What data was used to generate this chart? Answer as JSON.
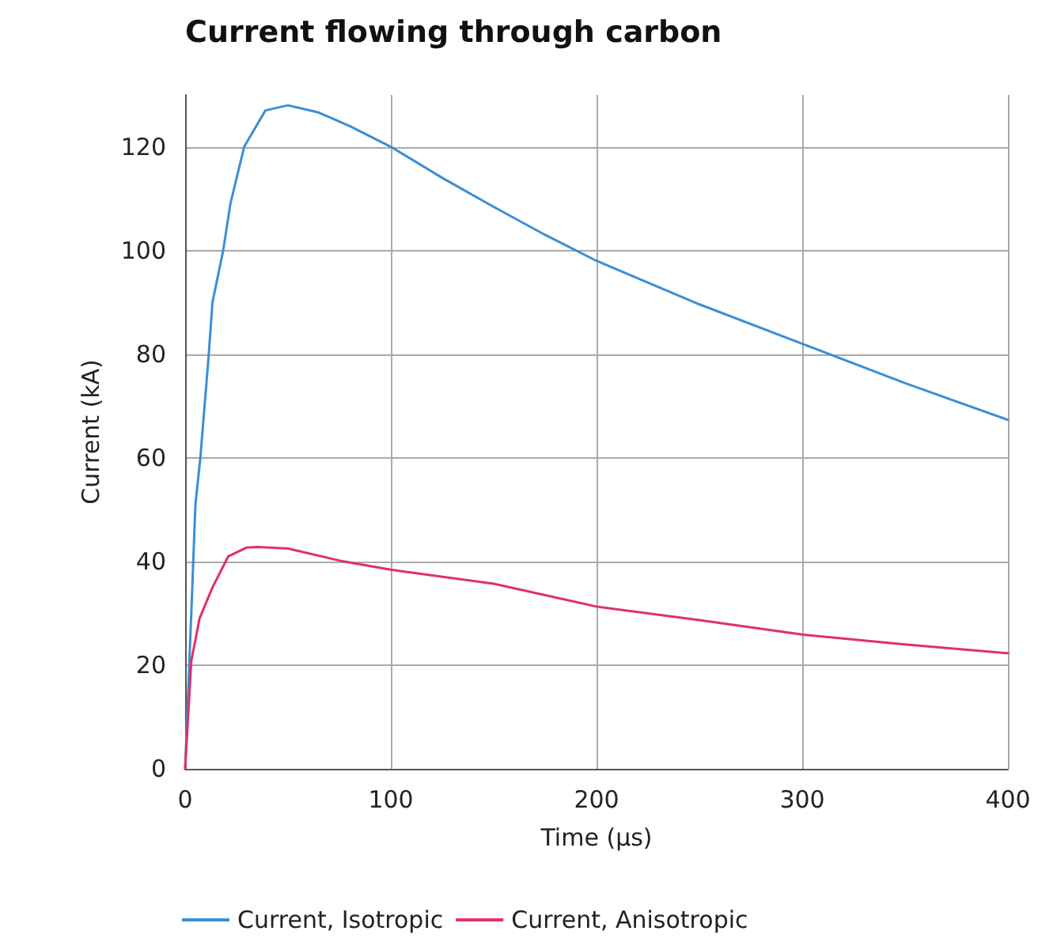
{
  "chart_data": {
    "type": "line",
    "title": "Current flowing through carbon",
    "xlabel": "Time (µs)",
    "ylabel": "Current (kA)",
    "xlim": [
      0,
      400
    ],
    "xticks": [
      0,
      100,
      200,
      300,
      400
    ],
    "ylim": [
      0,
      130
    ],
    "yticks": [
      0,
      20,
      40,
      60,
      80,
      100,
      120
    ],
    "grid": true,
    "legend": "bottom",
    "marker": "none",
    "line_style": "solid",
    "series": [
      {
        "name": "Current, Isotropic",
        "color": "#3a8fd6",
        "x": [
          0,
          3,
          5,
          7.4,
          11.5,
          13.3,
          18.5,
          22,
          28.7,
          39,
          50,
          65,
          80,
          100,
          125,
          150,
          175,
          200,
          250,
          300,
          350,
          400
        ],
        "values": [
          0,
          30,
          51,
          60,
          80,
          90,
          100,
          109,
          120,
          127,
          128,
          126.6,
          124,
          120,
          114,
          108.4,
          103,
          98,
          89.6,
          82,
          74.4,
          67.3
        ]
      },
      {
        "name": "Current, Anisotropic",
        "color": "#e0306a",
        "x": [
          0,
          3,
          7,
          13.3,
          21,
          30,
          35,
          50,
          77,
          100,
          150,
          200,
          250,
          300,
          350,
          400
        ],
        "values": [
          0,
          20.8,
          29,
          35,
          41,
          42.7,
          42.8,
          42.5,
          40,
          38.4,
          35.7,
          31.3,
          28.7,
          25.9,
          24,
          22.3
        ]
      }
    ]
  }
}
